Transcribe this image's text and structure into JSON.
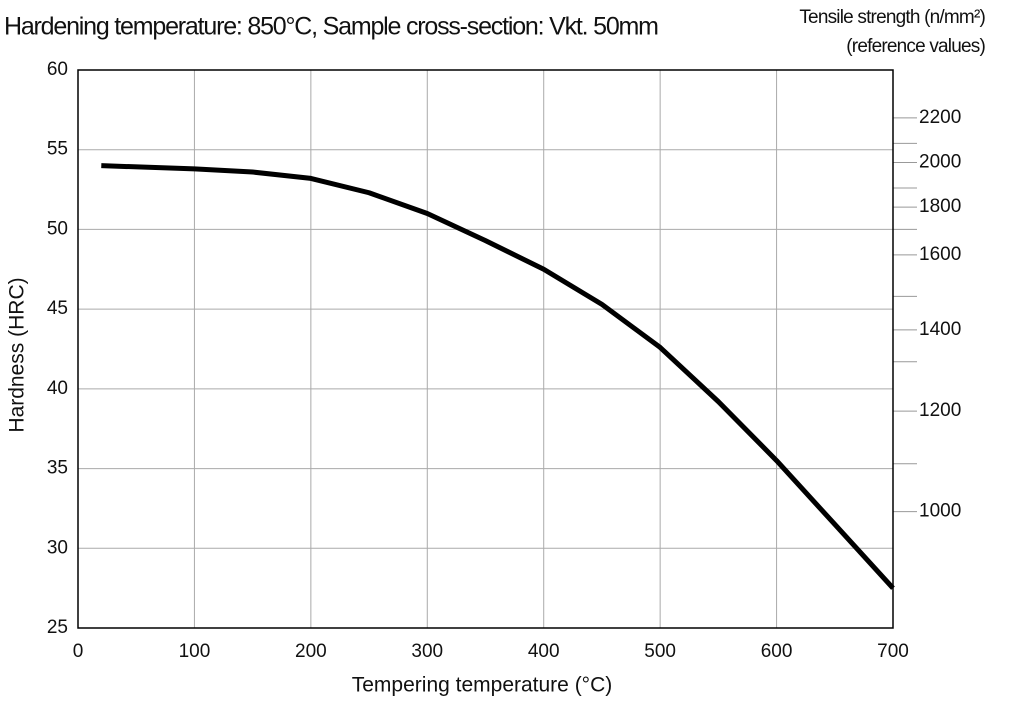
{
  "chart_data": {
    "type": "line",
    "title": "Hardening temperature: 850°C, Sample cross-section: Vkt. 50mm",
    "x_label": "Tempering temperature (°C)",
    "y_label": "Hardness (HRC)",
    "y2_label": [
      "Tensile strength (n/mm²)",
      "(reference values)"
    ],
    "x": [
      20,
      100,
      150,
      200,
      250,
      300,
      350,
      400,
      450,
      500,
      550,
      600,
      650,
      700
    ],
    "series": [
      {
        "color": "#000000",
        "values": [
          54.0,
          53.8,
          53.6,
          53.2,
          52.3,
          51.0,
          49.3,
          47.5,
          45.3,
          42.6,
          39.2,
          35.5,
          31.5,
          27.5
        ]
      }
    ],
    "xlim": [
      0,
      700
    ],
    "xticks": [
      0,
      100,
      200,
      300,
      400,
      500,
      600,
      700
    ],
    "ylim": [
      25,
      60
    ],
    "yticks": [
      25,
      30,
      35,
      40,
      45,
      50,
      55,
      60
    ],
    "y2ticks": [
      {
        "value": 2200,
        "at": 57.0
      },
      {
        "value": 2000,
        "at": 54.2
      },
      {
        "value": 1800,
        "at": 51.4
      },
      {
        "value": 1600,
        "at": 48.4
      },
      {
        "value": 1400,
        "at": 43.7
      },
      {
        "value": 1200,
        "at": 38.6
      },
      {
        "value": 1000,
        "at": 32.3
      }
    ],
    "y2minor_ticks": [
      55.4,
      52.6,
      50.0,
      45.8,
      41.7,
      35.3
    ],
    "grid": true
  }
}
